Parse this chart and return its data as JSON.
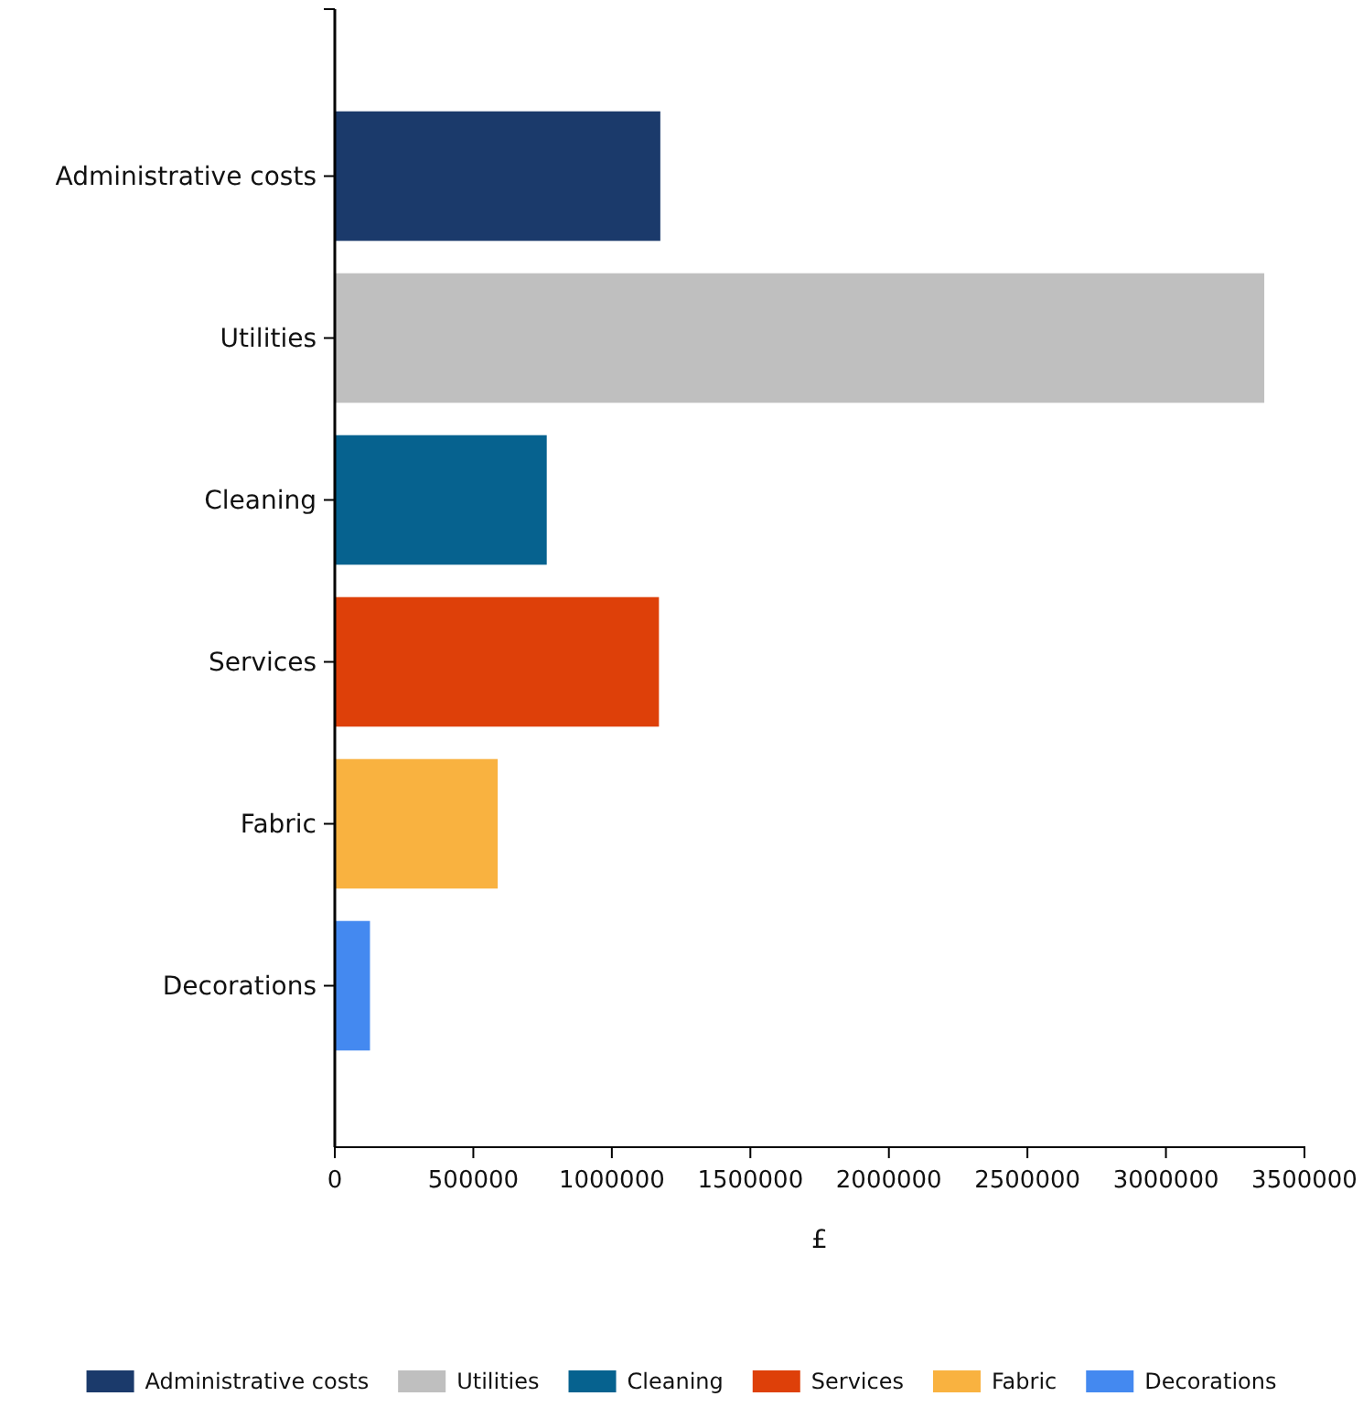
{
  "chart_data": {
    "type": "bar",
    "orientation": "horizontal",
    "stacked": true,
    "xlabel": "£",
    "categories": [
      "Administrative costs",
      "Utilities",
      "Cleaning",
      "Services",
      "Fabric",
      "Decorations"
    ],
    "series": [
      {
        "name": "Administrative costs",
        "color": "#1b3a6b",
        "values": [
          1175000,
          null,
          null,
          null,
          null,
          null
        ]
      },
      {
        "name": "Utilities",
        "color": "#bfbfbf",
        "values": [
          null,
          3355000,
          null,
          null,
          null,
          null
        ]
      },
      {
        "name": "Cleaning",
        "color": "#06628f",
        "values": [
          null,
          null,
          765000,
          null,
          null,
          null
        ]
      },
      {
        "name": "Services",
        "color": "#de4009",
        "values": [
          null,
          null,
          null,
          1170000,
          null,
          null
        ]
      },
      {
        "name": "Fabric",
        "color": "#f9b240",
        "values": [
          null,
          null,
          null,
          null,
          588000,
          null
        ]
      },
      {
        "name": "Decorations",
        "color": "#4489f0",
        "values": [
          null,
          null,
          null,
          null,
          null,
          127000
        ]
      }
    ],
    "xlim": [
      0,
      3500000
    ],
    "xticks": [
      0,
      500000,
      1000000,
      1500000,
      2000000,
      2500000,
      3000000,
      3500000
    ],
    "legend": "bottom"
  }
}
